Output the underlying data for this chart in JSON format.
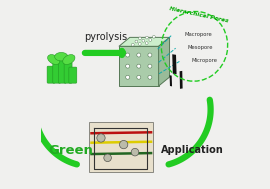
{
  "bg_color": "#f0f0ee",
  "arrow_color": "#22cc22",
  "pyrolysis_text": "pyrolysis",
  "green_text": "Green",
  "application_text": "Application",
  "hierarchical_text": "Hierarchical Pores",
  "macropore_text": "Macropore",
  "mesopore_text": "Mesopore",
  "micropore_text": "Micropore",
  "arrow_lw": 4.5
}
